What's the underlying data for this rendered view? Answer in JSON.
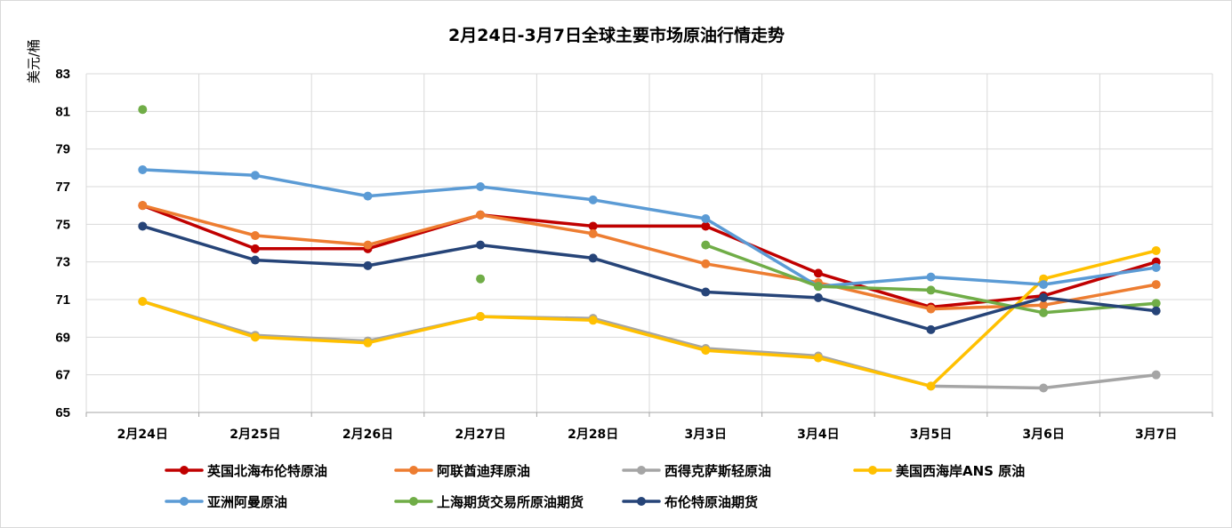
{
  "chart_data": {
    "type": "line",
    "title": "2月24日-3月7日全球主要市场原油行情走势",
    "ylabel": "美元/桶",
    "xlabel": "",
    "ylim": [
      65,
      83
    ],
    "yticks": [
      65,
      67,
      69,
      71,
      73,
      75,
      77,
      79,
      81,
      83
    ],
    "grid": true,
    "legend_position": "bottom",
    "categories": [
      "2月24日",
      "2月25日",
      "2月26日",
      "2月27日",
      "2月28日",
      "3月3日",
      "3月4日",
      "3月5日",
      "3月6日",
      "3月7日"
    ],
    "series": [
      {
        "name": "英国北海布伦特原油",
        "color": "#C00000",
        "values": [
          76.0,
          73.7,
          73.7,
          75.5,
          74.9,
          74.9,
          72.4,
          70.6,
          71.2,
          73.0
        ]
      },
      {
        "name": "阿联酋迪拜原油",
        "color": "#ED7D31",
        "values": [
          76.0,
          74.4,
          73.9,
          75.5,
          74.5,
          72.9,
          71.9,
          70.5,
          70.7,
          71.8
        ]
      },
      {
        "name": "西得克萨斯轻原油",
        "color": "#A5A5A5",
        "values": [
          70.9,
          69.1,
          68.8,
          70.1,
          70.0,
          68.4,
          68.0,
          66.4,
          66.3,
          67.0
        ]
      },
      {
        "name": "美国西海岸ANS 原油",
        "color": "#FFC000",
        "values": [
          70.9,
          69.0,
          68.7,
          70.1,
          69.9,
          68.3,
          67.9,
          66.4,
          72.1,
          73.6
        ]
      },
      {
        "name": "亚洲阿曼原油",
        "color": "#5B9BD5",
        "values": [
          77.9,
          77.6,
          76.5,
          77.0,
          76.3,
          75.3,
          71.7,
          72.2,
          71.8,
          72.7
        ]
      },
      {
        "name": "上海期货交易所原油期货",
        "color": "#70AD47",
        "values": [
          81.1,
          null,
          null,
          72.1,
          null,
          73.9,
          71.7,
          71.5,
          70.3,
          70.8
        ]
      },
      {
        "name": "布伦特原油期货",
        "color": "#264478",
        "values": [
          74.9,
          73.1,
          72.8,
          73.9,
          73.2,
          71.4,
          71.1,
          69.4,
          71.1,
          70.4
        ]
      }
    ]
  }
}
